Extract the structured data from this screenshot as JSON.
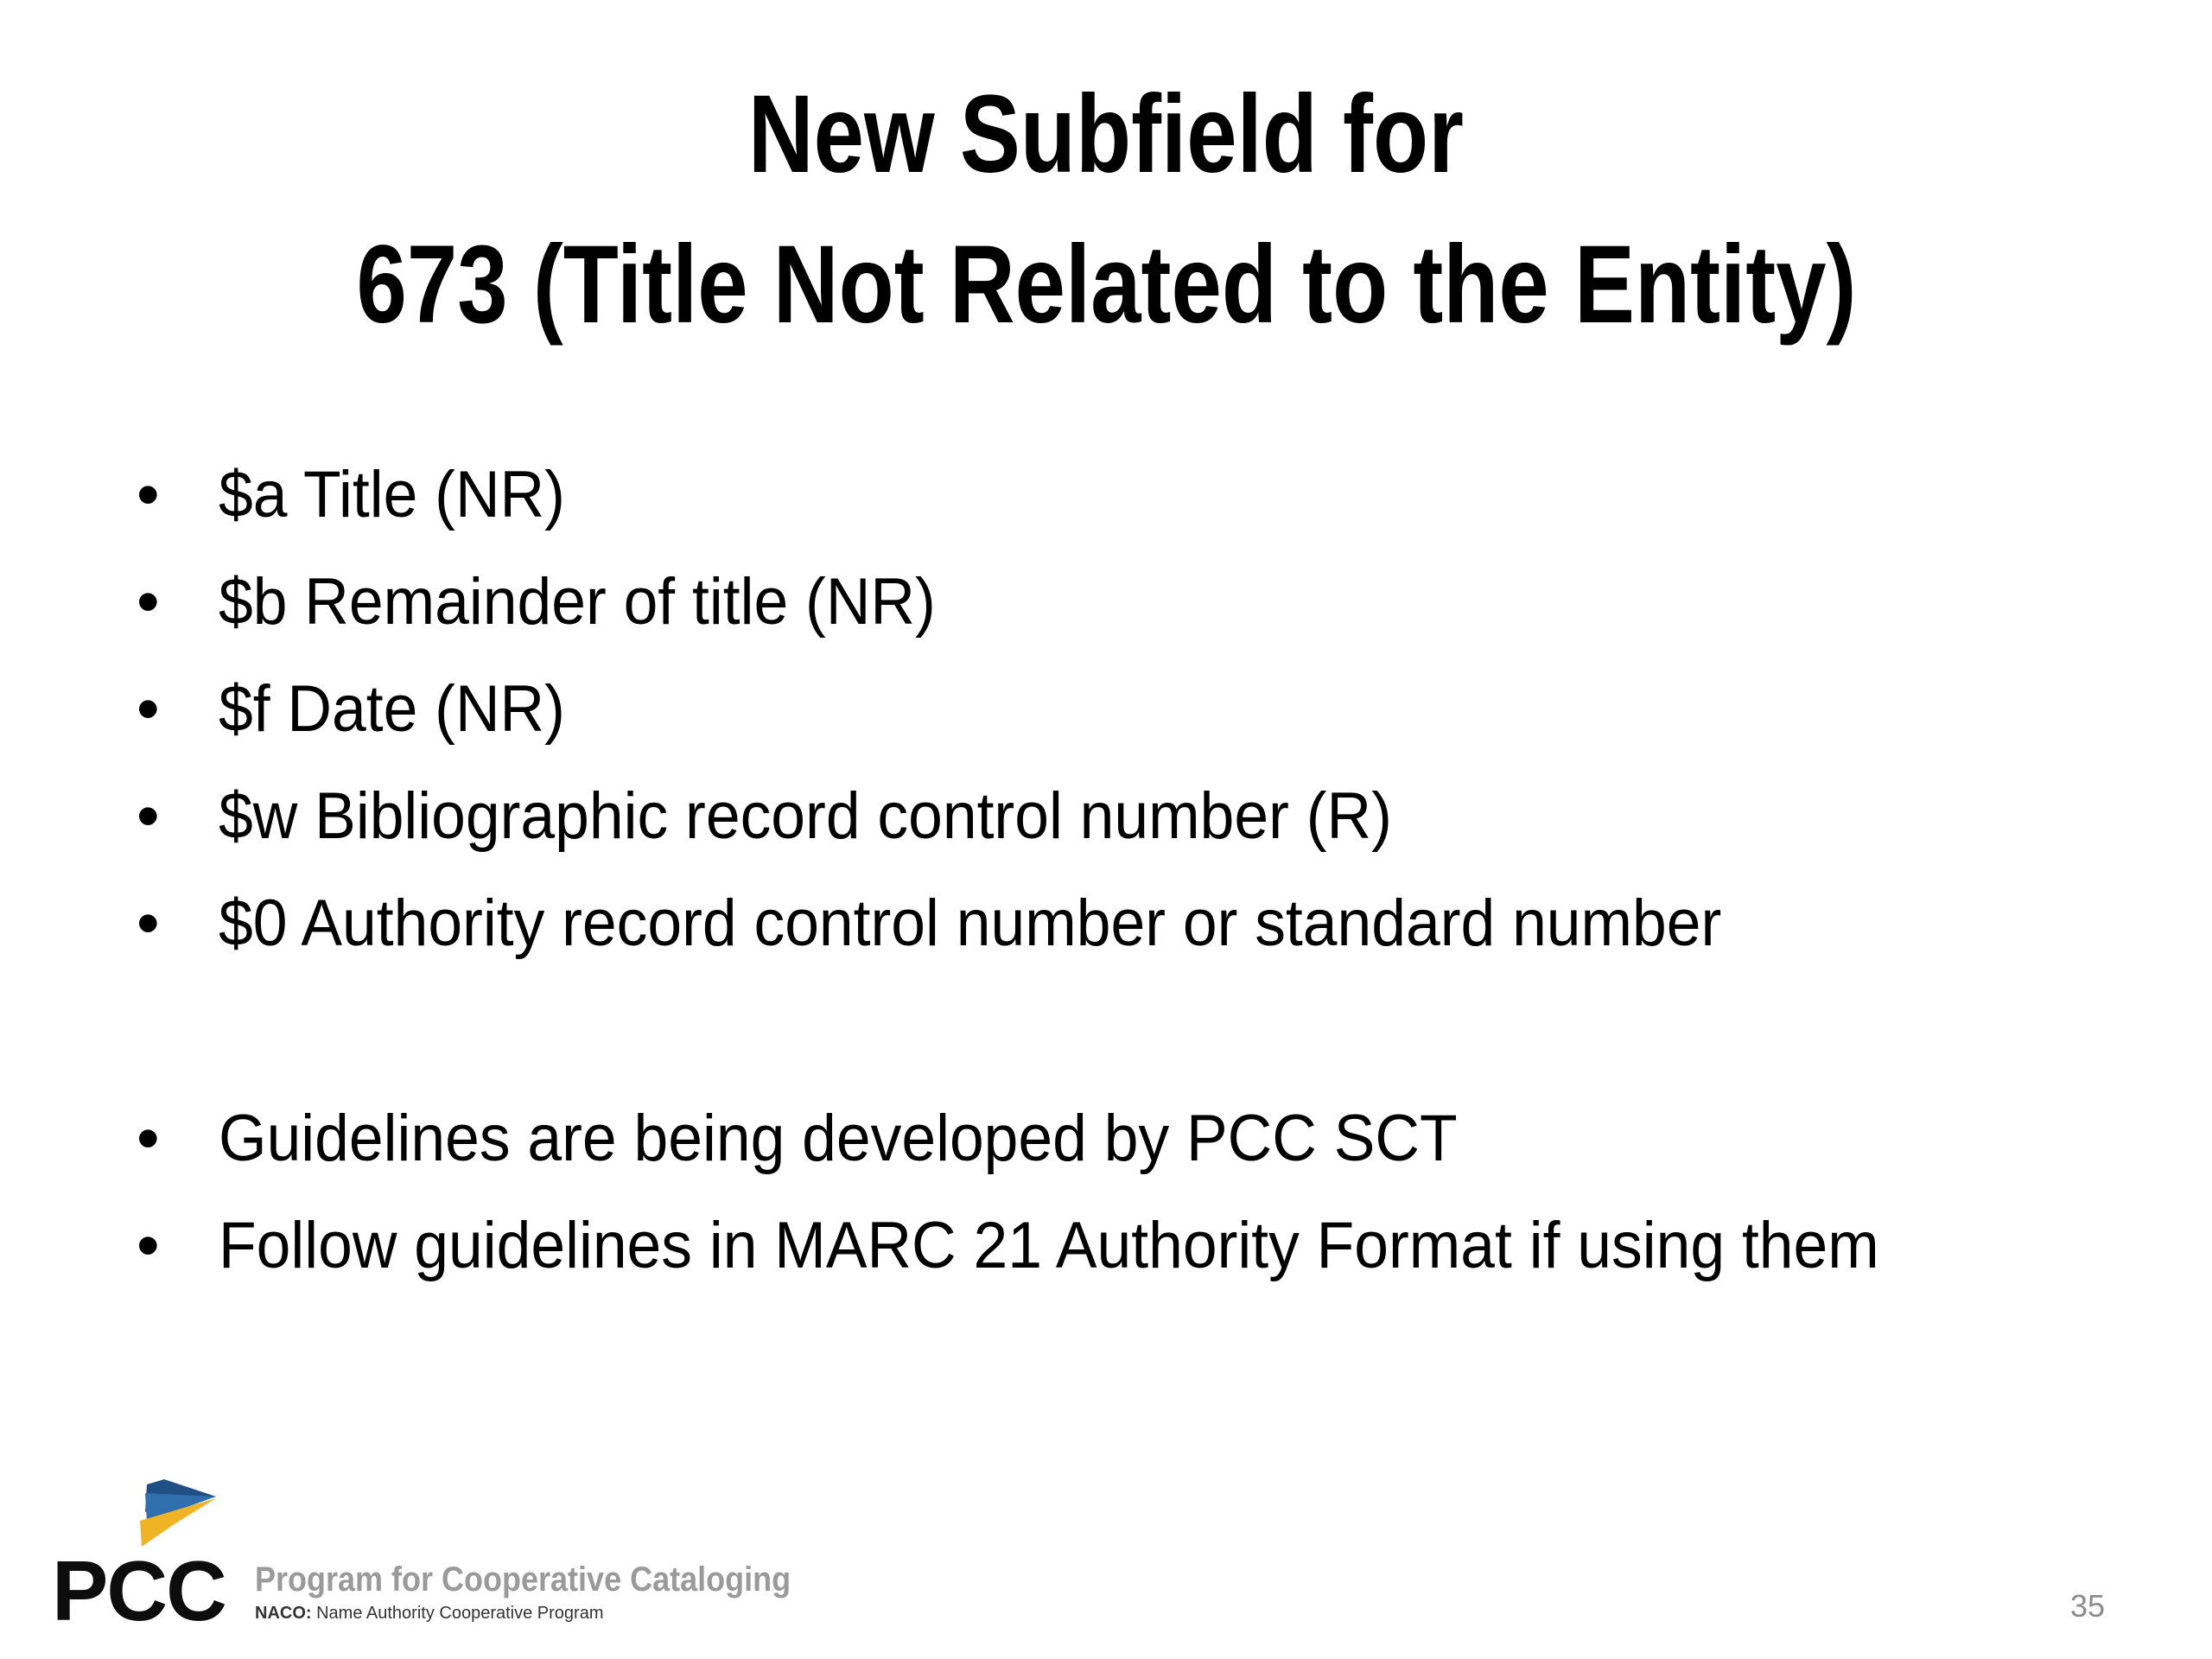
{
  "slide": {
    "title_line1": "New Subfield for",
    "title_line2": "673 (Title Not Related to the Entity)",
    "bullets": [
      "$a Title (NR)",
      "$b Remainder of title (NR)",
      "$f Date (NR)",
      "$w Bibliographic record control number (R)",
      "$0 Authority record control number or standard number",
      "Guidelines are being developed by PCC SCT",
      "Follow guidelines in MARC 21 Authority Format if using them"
    ],
    "bullet_char": "•",
    "page_number": "35"
  },
  "logo": {
    "acronym": "PCC",
    "name": "Program for Cooperative Cataloging",
    "sub_prefix": "NACO:",
    "sub_text": " Name Authority Cooperative Program",
    "colors": {
      "blue": "#2f6fae",
      "dark_blue": "#1f4f85",
      "yellow": "#f0b323",
      "gray_text": "#9a9a9a"
    }
  }
}
